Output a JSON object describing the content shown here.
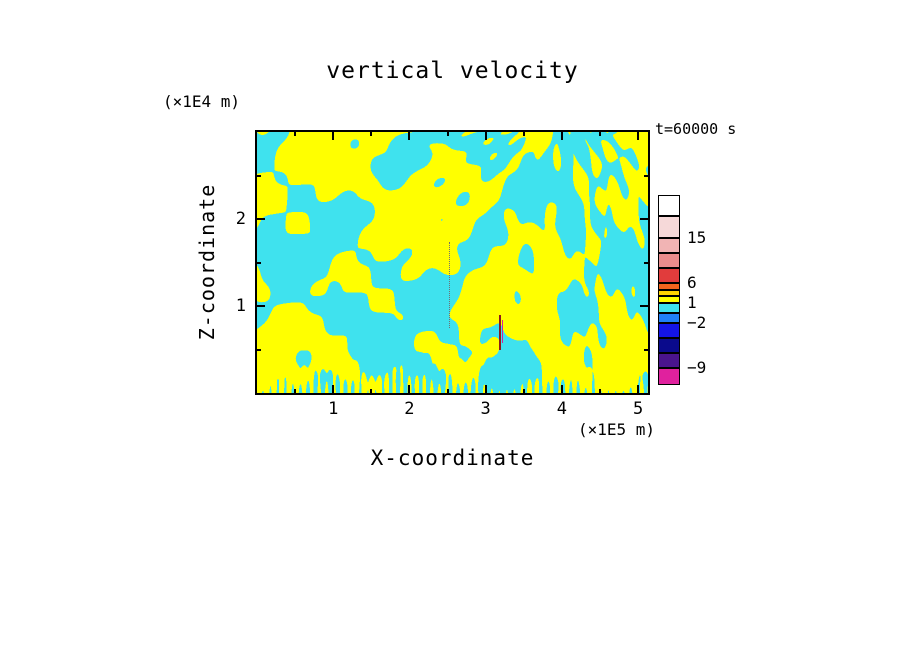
{
  "figure": {
    "title": "vertical velocity",
    "y_unit_label": "(×1E4 m)",
    "x_unit_label": "(×1E5 m)",
    "y_axis_title": "Z-coordinate",
    "x_axis_title": "X-coordinate",
    "time_annotation": "t=60000 s"
  },
  "axes": {
    "x": {
      "range": [
        0,
        5.13
      ],
      "major_ticks": [
        1,
        2,
        3,
        4,
        5
      ],
      "minor_ticks": [
        0.5,
        1.5,
        2.5,
        3.5,
        4.5
      ],
      "tick_labels": [
        "1",
        "2",
        "3",
        "4",
        "5"
      ]
    },
    "z": {
      "range": [
        0,
        3.0
      ],
      "major_ticks": [
        1,
        2
      ],
      "minor_ticks": [
        0.5,
        1.5,
        2.5
      ],
      "tick_labels": [
        "1",
        "2"
      ]
    }
  },
  "colorbar": {
    "labels": [
      {
        "text": "15",
        "boundary_index": 2
      },
      {
        "text": "6",
        "boundary_index": 5
      },
      {
        "text": "1",
        "boundary_index": 8
      },
      {
        "text": "−2",
        "boundary_index": 10
      },
      {
        "text": "−9",
        "boundary_index": 13
      }
    ],
    "segments": [
      {
        "color": "#FFFFFF",
        "height": 21
      },
      {
        "color": "#F6D9D9",
        "height": 22
      },
      {
        "color": "#F1B4B4",
        "height": 15
      },
      {
        "color": "#EA8C8C",
        "height": 15
      },
      {
        "color": "#E13C3C",
        "height": 15
      },
      {
        "color": "#F4641D",
        "height": 7
      },
      {
        "color": "#FFD300",
        "height": 6
      },
      {
        "color": "#FFFF00",
        "height": 7
      },
      {
        "color": "#3FE2EE",
        "height": 10
      },
      {
        "color": "#2080F8",
        "height": 10
      },
      {
        "color": "#1414E6",
        "height": 15
      },
      {
        "color": "#0A0A8C",
        "height": 15
      },
      {
        "color": "#4A148C",
        "height": 15
      },
      {
        "color": "#E0219E",
        "height": 17
      }
    ]
  },
  "chart_data": {
    "type": "heatmap",
    "title": "vertical velocity",
    "xlabel": "X-coordinate (×1E5 m)",
    "ylabel": "Z-coordinate (×1E4 m)",
    "time_annotation": "t=60000 s",
    "xlim": [
      0,
      5.13
    ],
    "ylim": [
      0,
      3.0
    ],
    "x_ticks": [
      1,
      2,
      3,
      4,
      5
    ],
    "y_ticks": [
      1,
      2
    ],
    "contour_levels_top_to_bottom": [
      18,
      15,
      12,
      9,
      6,
      3,
      2,
      1,
      -1,
      -2,
      -3,
      -6,
      -9
    ],
    "legend_position": "right",
    "grid": false,
    "dominant_field_colors": {
      "positive_band": "#FFFF00",
      "near_zero_band": "#3FE2EE"
    },
    "field_approximation": {
      "note": "binary cyan/yellow gravity-wave interference pattern, procedural approximation",
      "threshold": 0,
      "bias": 0.1,
      "colors": {
        "above": "#FFFF00",
        "below": "#3FE2EE"
      },
      "modes": [
        {
          "kx": 1.2,
          "kz": 1.0,
          "amp": 0.9,
          "phase": 0.4
        },
        {
          "kx": 2.3,
          "kz": -1.6,
          "amp": 0.85,
          "phase": 2.1
        },
        {
          "kx": 3.4,
          "kz": 2.7,
          "amp": 0.7,
          "phase": 1.3
        },
        {
          "kx": 5.1,
          "kz": -3.2,
          "amp": 0.6,
          "phase": 4.2
        },
        {
          "kx": 7.2,
          "kz": 5.1,
          "amp": 0.5,
          "phase": 0.9
        },
        {
          "kx": 9.7,
          "kz": -6.4,
          "amp": 0.4,
          "phase": 2.8
        }
      ],
      "chirp": {
        "amp": 0.8,
        "k0": 2.0,
        "k1": 14.0,
        "kz": 3.0,
        "start_u": 0.35
      },
      "fan": {
        "cx": 0.78,
        "cy": 1.12,
        "count": 30,
        "amp": 0.9,
        "sigma": 0.28
      },
      "arcs": {
        "cx": 0.02,
        "cy": 0.05,
        "freq": 5.5,
        "amp": 0.75,
        "decay": 2.5
      },
      "bottom_comb": {
        "freq": 52,
        "amp": 3.0,
        "decay": 28
      }
    },
    "features": [
      {
        "u": 0.49,
        "v0": 0.25,
        "v1": 0.58,
        "width": 1,
        "color": "#707070",
        "style": "dotted"
      },
      {
        "u": 0.618,
        "v0": 0.165,
        "v1": 0.3,
        "width": 2,
        "color": "#8B1A1A",
        "style": "solid"
      },
      {
        "u": 0.627,
        "v0": 0.19,
        "v1": 0.28,
        "width": 1,
        "color": "#D4219C",
        "style": "solid"
      }
    ]
  },
  "layout_colors": {
    "frame": "#000000",
    "background": "#FFFFFF"
  }
}
